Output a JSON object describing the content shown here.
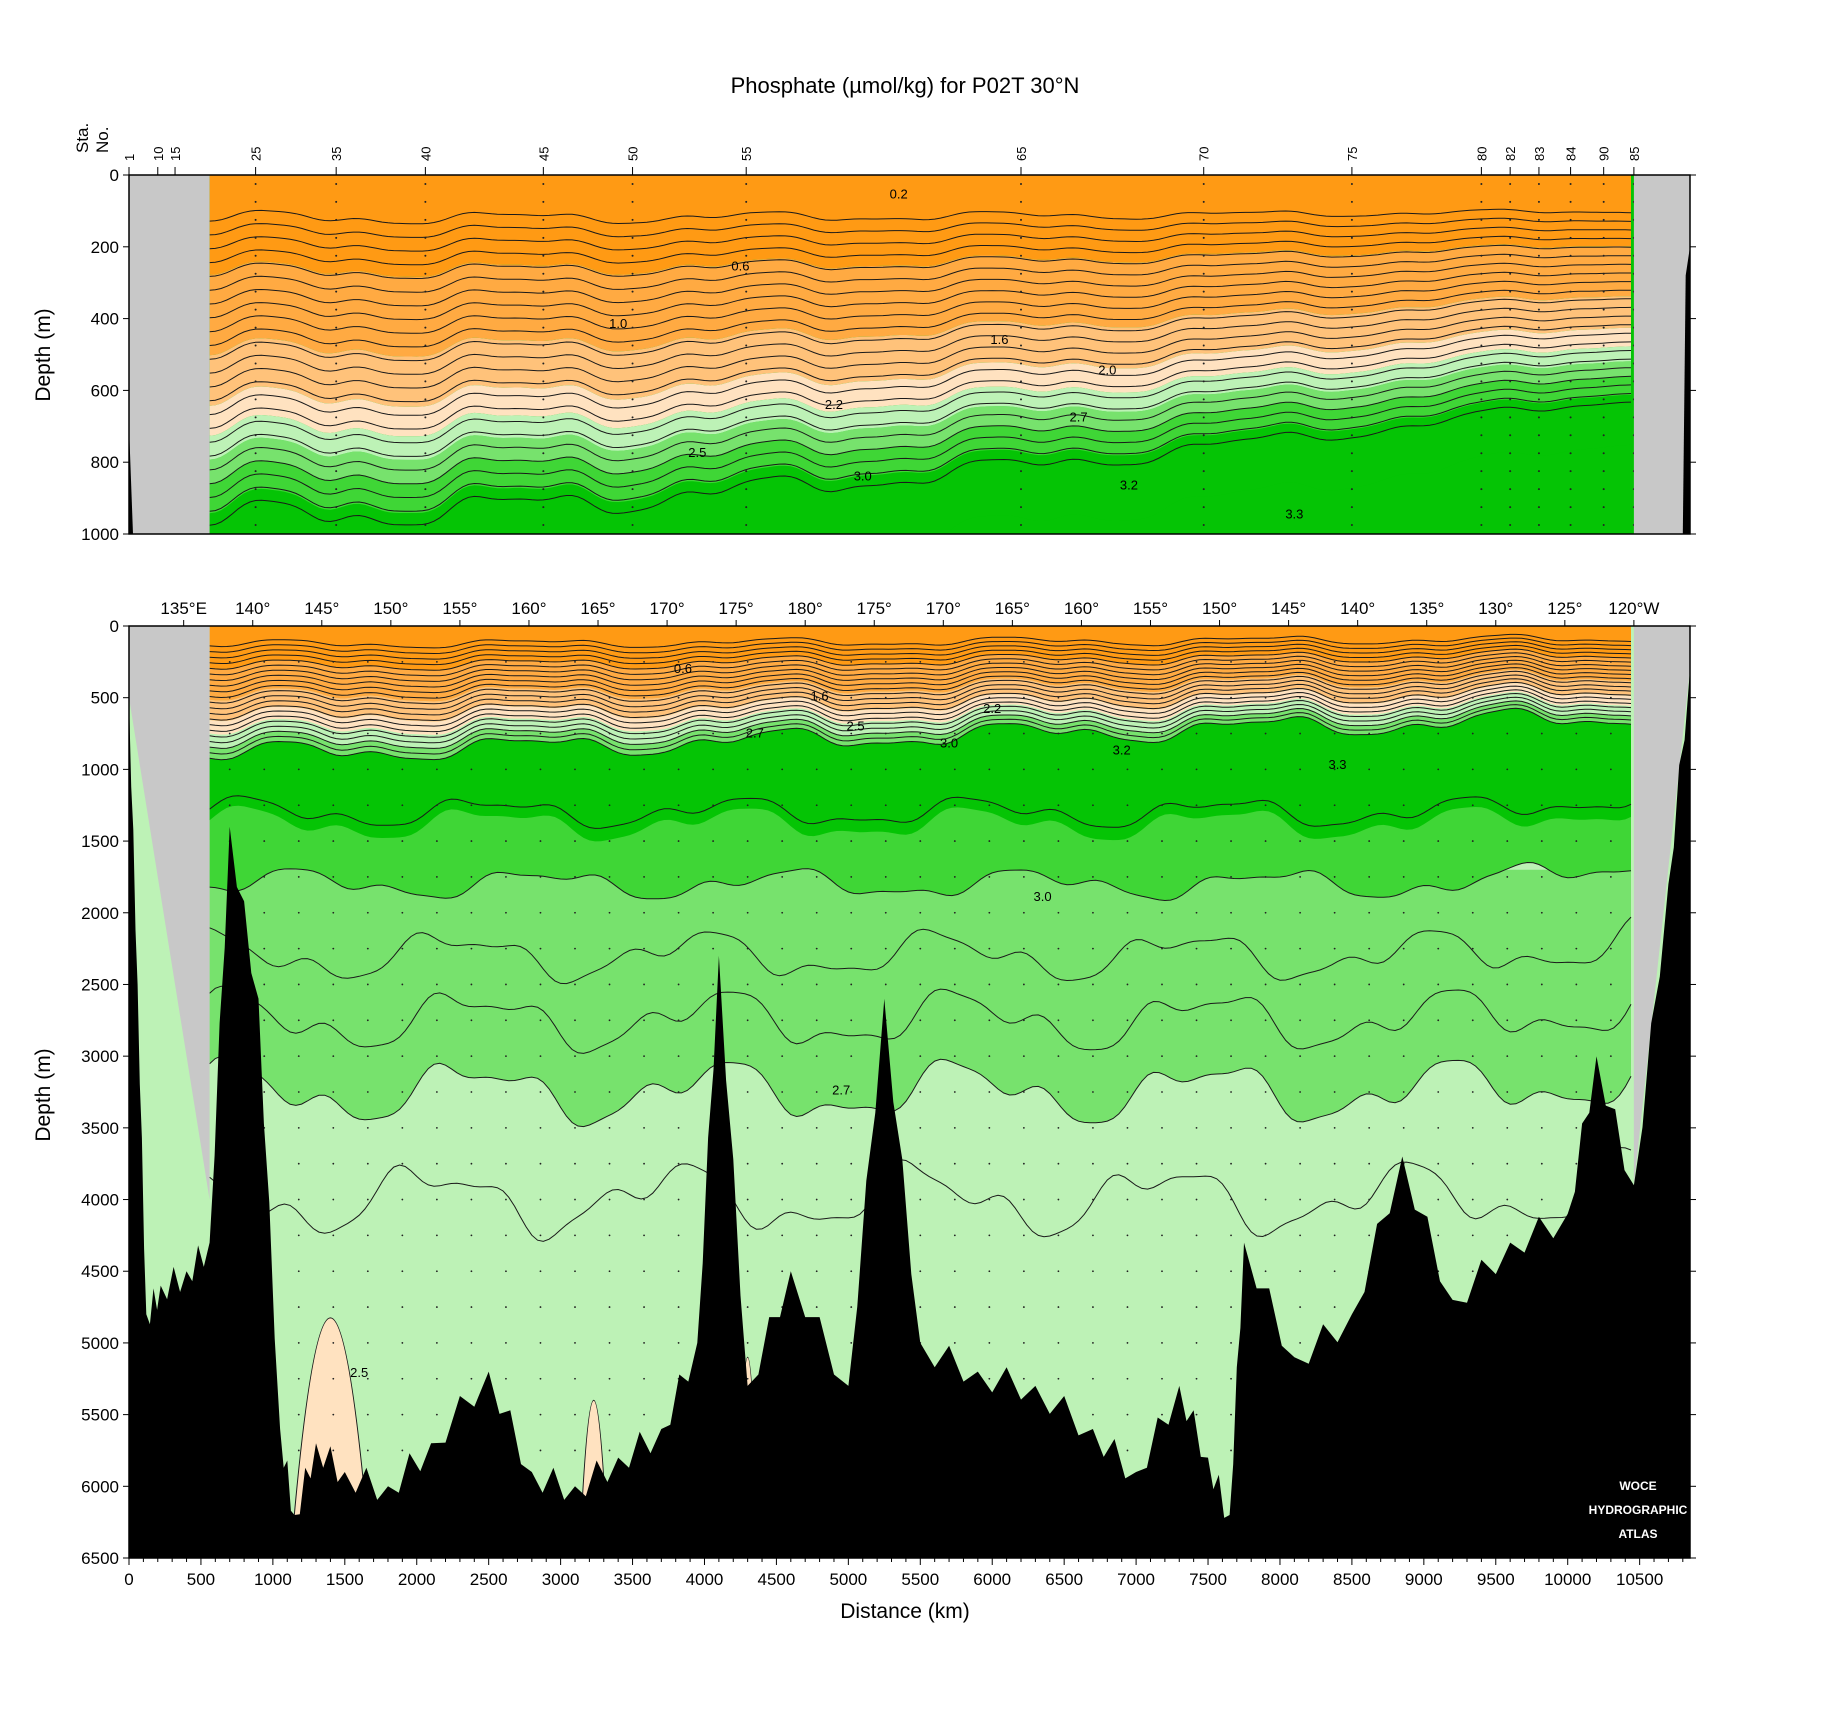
{
  "chart_data": {
    "type": "contour_section",
    "title": "Phosphate (µmol/kg) for P02T 30°N",
    "xlabel": "Distance (km)",
    "ylabel": "Depth (m)",
    "xlim": [
      0,
      10850
    ],
    "x_ticks": [
      0,
      500,
      1000,
      1500,
      2000,
      2500,
      3000,
      3500,
      4000,
      4500,
      5000,
      5500,
      6000,
      6500,
      7000,
      7500,
      8000,
      8500,
      9000,
      9500,
      10000,
      10500
    ],
    "station_axis_label": [
      "Sta.",
      "No."
    ],
    "stations": [
      {
        "label": "1",
        "km": 0
      },
      {
        "label": "10",
        "km": 200
      },
      {
        "label": "15",
        "km": 320
      },
      {
        "label": "25",
        "km": 880
      },
      {
        "label": "35",
        "km": 1440
      },
      {
        "label": "40",
        "km": 2060
      },
      {
        "label": "45",
        "km": 2880
      },
      {
        "label": "50",
        "km": 3500
      },
      {
        "label": "55",
        "km": 4290
      },
      {
        "label": "65",
        "km": 6200
      },
      {
        "label": "70",
        "km": 7470
      },
      {
        "label": "75",
        "km": 8500
      },
      {
        "label": "80",
        "km": 9400
      },
      {
        "label": "82",
        "km": 9600
      },
      {
        "label": "83",
        "km": 9800
      },
      {
        "label": "84",
        "km": 10020
      },
      {
        "label": "90",
        "km": 10250
      },
      {
        "label": "85",
        "km": 10460
      }
    ],
    "longitude_ticks": [
      {
        "label": "135°E",
        "km": 380
      },
      {
        "label": "140°",
        "km": 860
      },
      {
        "label": "145°",
        "km": 1340
      },
      {
        "label": "150°",
        "km": 1820
      },
      {
        "label": "155°",
        "km": 2300
      },
      {
        "label": "160°",
        "km": 2780
      },
      {
        "label": "165°",
        "km": 3260
      },
      {
        "label": "170°",
        "km": 3740
      },
      {
        "label": "175°",
        "km": 4220
      },
      {
        "label": "180°",
        "km": 4700
      },
      {
        "label": "175°",
        "km": 5180
      },
      {
        "label": "170°",
        "km": 5660
      },
      {
        "label": "165°",
        "km": 6140
      },
      {
        "label": "160°",
        "km": 6620
      },
      {
        "label": "155°",
        "km": 7100
      },
      {
        "label": "150°",
        "km": 7580
      },
      {
        "label": "145°",
        "km": 8060
      },
      {
        "label": "140°",
        "km": 8540
      },
      {
        "label": "135°",
        "km": 9020
      },
      {
        "label": "130°",
        "km": 9500
      },
      {
        "label": "125°",
        "km": 9980
      },
      {
        "label": "120°W",
        "km": 10460
      }
    ],
    "upper_panel": {
      "ylim": [
        0,
        1000
      ],
      "y_ticks": [
        0,
        200,
        400,
        600,
        800,
        1000
      ],
      "contour_labels": [
        {
          "text": "0.2",
          "km": 5350,
          "depth": 55
        },
        {
          "text": "0.6",
          "km": 4250,
          "depth": 255
        },
        {
          "text": "1.0",
          "km": 3400,
          "depth": 415
        },
        {
          "text": "1.6",
          "km": 6050,
          "depth": 460
        },
        {
          "text": "2.0",
          "km": 6800,
          "depth": 545
        },
        {
          "text": "2.2",
          "km": 4900,
          "depth": 640
        },
        {
          "text": "2.7",
          "km": 6600,
          "depth": 675
        },
        {
          "text": "2.5",
          "km": 3950,
          "depth": 775
        },
        {
          "text": "3.0",
          "km": 5100,
          "depth": 840
        },
        {
          "text": "3.2",
          "km": 6950,
          "depth": 865
        },
        {
          "text": "3.3",
          "km": 8100,
          "depth": 945
        }
      ]
    },
    "lower_panel": {
      "ylim": [
        0,
        6500
      ],
      "y_ticks": [
        0,
        500,
        1000,
        1500,
        2000,
        2500,
        3000,
        3500,
        4000,
        4500,
        5000,
        5500,
        6000,
        6500
      ],
      "contour_labels": [
        {
          "text": "0.6",
          "km": 3850,
          "depth": 300
        },
        {
          "text": "1.6",
          "km": 4800,
          "depth": 490
        },
        {
          "text": "2.2",
          "km": 6000,
          "depth": 580
        },
        {
          "text": "2.5",
          "km": 5050,
          "depth": 700
        },
        {
          "text": "2.7",
          "km": 4350,
          "depth": 750
        },
        {
          "text": "3.0",
          "km": 5700,
          "depth": 820
        },
        {
          "text": "3.2",
          "km": 6900,
          "depth": 870
        },
        {
          "text": "3.3",
          "km": 8400,
          "depth": 970
        },
        {
          "text": "3.0",
          "km": 6350,
          "depth": 1890
        },
        {
          "text": "2.7",
          "km": 4950,
          "depth": 3240
        },
        {
          "text": "2.5",
          "km": 1600,
          "depth": 5210
        }
      ]
    },
    "colors": {
      "orange_dark": "#ff9a14",
      "orange_mid": "#ffaa42",
      "orange_light": "#ffc27a",
      "peach": "#ffe2c0",
      "green_pale": "#bdf2b6",
      "green_light": "#77e26d",
      "green_mid": "#3fd636",
      "green_dark": "#05c405",
      "land_gray": "#c8c8c8",
      "bottom": "#000000"
    },
    "logo": [
      "WOCE",
      "HYDROGRAPHIC",
      "ATLAS"
    ]
  }
}
